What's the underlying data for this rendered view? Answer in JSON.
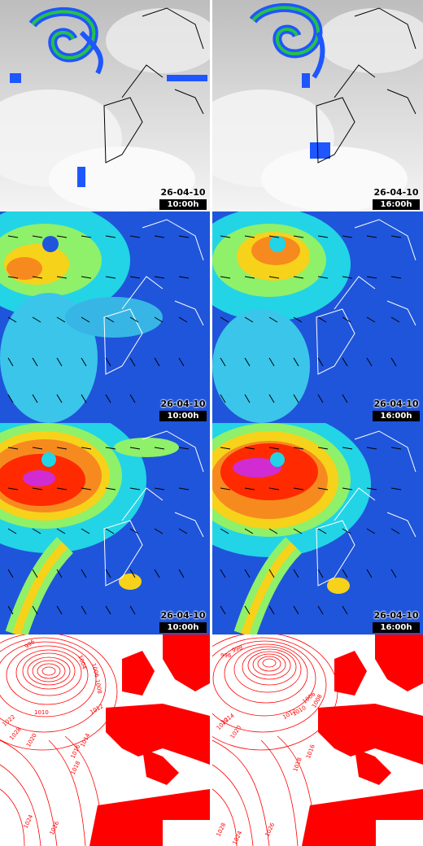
{
  "title": "",
  "colors": {
    "satellite_cloud": "#f2f2f2",
    "satellite_ocean": "#a8a8a8",
    "precip": "#1e56ff",
    "wind_low": "#1a49d6",
    "wind_mid": "#22d4e6",
    "wind_high": "#ff2a00",
    "wind_max": "#d02cd2",
    "isobar": "#ff0000"
  },
  "panels": [
    {
      "row": "satellite",
      "date": "26-04-10",
      "time": "10:00h"
    },
    {
      "row": "satellite",
      "date": "26-04-10",
      "time": "16:00h"
    },
    {
      "row": "wind-low",
      "date": "26-04-10",
      "time": "10:00h"
    },
    {
      "row": "wind-low",
      "date": "26-04-10",
      "time": "16:00h"
    },
    {
      "row": "wind-high",
      "date": "26-04-10",
      "time": "10:00h"
    },
    {
      "row": "wind-high",
      "date": "26-04-10",
      "time": "16:00h"
    }
  ],
  "isobar_labels": {
    "left": [
      "996",
      "1004",
      "1006",
      "1008",
      "1010",
      "1012",
      "1014",
      "1016",
      "1018",
      "1020",
      "1022",
      "1024",
      "1026",
      "1028"
    ],
    "right": [
      "996",
      "998",
      "1006",
      "1008",
      "1010",
      "1012",
      "1014",
      "1016",
      "1018",
      "1020",
      "1022",
      "1024",
      "1026",
      "1028"
    ]
  }
}
